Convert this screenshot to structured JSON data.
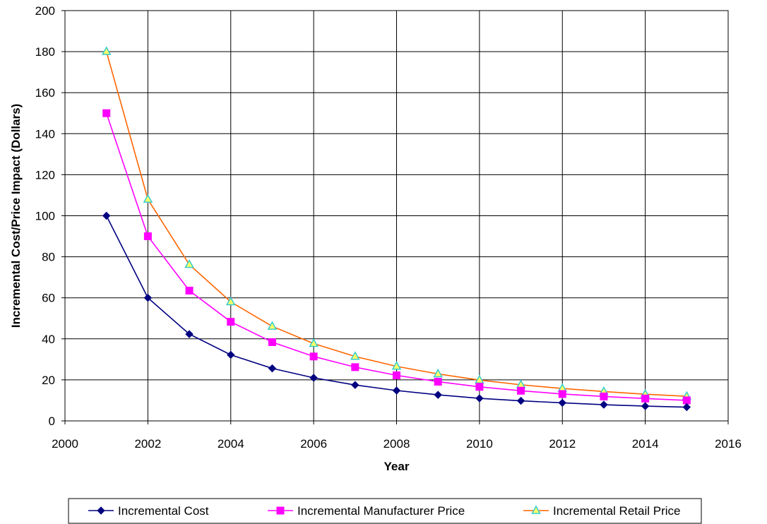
{
  "chart_data": {
    "type": "line",
    "title": "",
    "xlabel": "Year",
    "ylabel": "Incremental Cost/Price Impact (Dollars)",
    "xlim": [
      2000,
      2016
    ],
    "ylim": [
      0,
      200
    ],
    "x_ticks": [
      2000,
      2002,
      2004,
      2006,
      2008,
      2010,
      2012,
      2014,
      2016
    ],
    "y_ticks": [
      0,
      20,
      40,
      60,
      80,
      100,
      120,
      140,
      160,
      180,
      200
    ],
    "grid": true,
    "legend_position": "bottom",
    "x": [
      2001,
      2002,
      2003,
      2004,
      2005,
      2006,
      2007,
      2008,
      2009,
      2010,
      2011,
      2012,
      2013,
      2014,
      2015
    ],
    "series": [
      {
        "name": "Incremental Cost",
        "color": "#000080",
        "marker": "diamond",
        "values": [
          100,
          60,
          42.3,
          32.2,
          25.6,
          21.0,
          17.5,
          14.8,
          12.7,
          11.0,
          9.8,
          8.8,
          7.9,
          7.2,
          6.7
        ]
      },
      {
        "name": "Incremental Manufacturer Price",
        "color": "#FF00FF",
        "marker": "square",
        "values": [
          150,
          90,
          63.5,
          48.3,
          38.4,
          31.4,
          26.2,
          22.2,
          19.1,
          16.6,
          14.7,
          13.1,
          11.9,
          10.9,
          10.0
        ]
      },
      {
        "name": "Incremental Retail Price",
        "color": "#FF6600",
        "marker": "triangle",
        "marker_fill": "#FFFF66",
        "marker_stroke": "#33CCCC",
        "values": [
          180,
          108,
          76.2,
          58.0,
          46.1,
          37.7,
          31.4,
          26.6,
          22.9,
          19.9,
          17.6,
          15.8,
          14.3,
          13.0,
          12.0
        ]
      }
    ]
  }
}
